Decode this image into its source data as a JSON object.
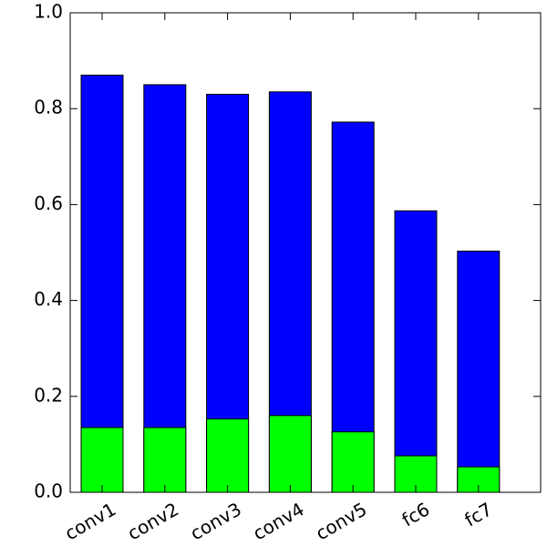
{
  "chart_data": {
    "type": "bar",
    "categories": [
      "conv1",
      "conv2",
      "conv3",
      "conv4",
      "conv5",
      "fc6",
      "fc7"
    ],
    "series": [
      {
        "color": "#0000ff",
        "values": [
          0.87,
          0.85,
          0.83,
          0.835,
          0.772,
          0.587,
          0.503
        ]
      },
      {
        "color": "#00ff00",
        "values": [
          0.135,
          0.135,
          0.153,
          0.16,
          0.126,
          0.076,
          0.053
        ]
      }
    ],
    "ylim": [
      0,
      1
    ],
    "yticks": [
      {
        "value": 0,
        "label": "0.0"
      },
      {
        "value": 0.2,
        "label": "0.2"
      },
      {
        "value": 0.4,
        "label": "0.4"
      },
      {
        "value": 0.6,
        "label": "0.6"
      },
      {
        "value": 0.8,
        "label": "0.8"
      },
      {
        "value": 1,
        "label": "1.0"
      }
    ],
    "grid": false
  }
}
